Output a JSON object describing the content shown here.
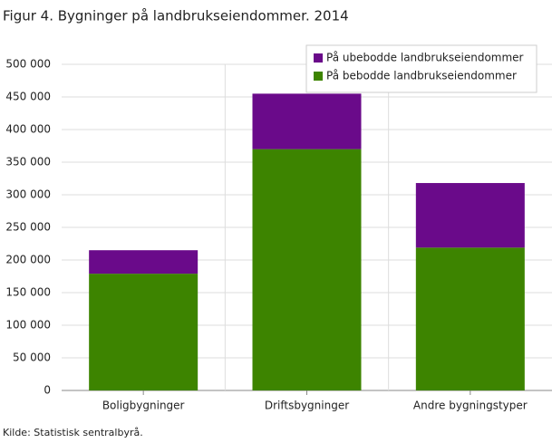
{
  "chart_data": {
    "type": "stacked_bar",
    "title": "Figur 4. Bygninger på landbrukseiendommer. 2014",
    "source": "Kilde: Statistisk sentralbyrå.",
    "categories": [
      "Boligbygninger",
      "Driftsbygninger",
      "Andre bygningstyper"
    ],
    "series": [
      {
        "name": "På bebodde landbrukseiendommer",
        "color": "#3d8400",
        "values": [
          179000,
          370000,
          219000
        ]
      },
      {
        "name": "På ubebodde landbrukseiendommer",
        "color": "#6a0a8a",
        "values": [
          36000,
          85000,
          99000
        ]
      }
    ],
    "ylim": [
      0,
      500000
    ],
    "yticks": [
      0,
      {
        "value": 50000,
        "label": "50 000"
      },
      {
        "value": 100000,
        "label": "100 000"
      },
      {
        "value": 150000,
        "label": "150 000"
      },
      {
        "value": 200000,
        "label": "200 000"
      },
      {
        "value": 250000,
        "label": "250 000"
      },
      {
        "value": 300000,
        "label": "300 000"
      },
      {
        "value": 350000,
        "label": "350 000"
      },
      {
        "value": 400000,
        "label": "400 000"
      },
      {
        "value": 450000,
        "label": "450 000"
      },
      {
        "value": 500000,
        "label": "500 000"
      }
    ],
    "grid": true,
    "legend": "top-right"
  }
}
